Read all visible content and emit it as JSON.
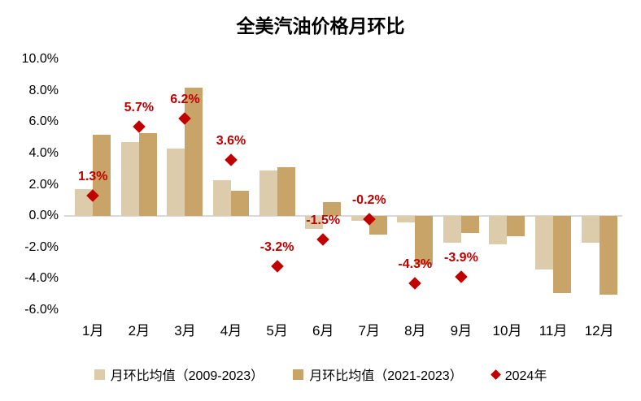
{
  "chart_data": {
    "type": "bar",
    "title": "全美汽油价格月环比",
    "xlabel": "",
    "ylabel": "",
    "ylim": [
      -6,
      10
    ],
    "grid": false,
    "legend_position": "bottom",
    "y_ticks": [
      "10.0%",
      "8.0%",
      "6.0%",
      "4.0%",
      "2.0%",
      "0.0%",
      "-2.0%",
      "-4.0%",
      "-6.0%"
    ],
    "categories": [
      "1月",
      "2月",
      "3月",
      "4月",
      "5月",
      "6月",
      "7月",
      "8月",
      "9月",
      "10月",
      "11月",
      "12月"
    ],
    "series": [
      {
        "name": "月环比均值（2009-2023）",
        "type": "bar",
        "color": "#ddccac",
        "values": [
          1.7,
          4.7,
          4.3,
          2.3,
          2.9,
          -0.8,
          -0.3,
          -0.4,
          -1.7,
          -1.8,
          -3.4,
          -1.7
        ]
      },
      {
        "name": "月环比均值（2021-2023）",
        "type": "bar",
        "color": "#c9a469",
        "values": [
          5.2,
          5.3,
          8.2,
          1.6,
          3.1,
          0.9,
          -1.2,
          -3.1,
          -1.1,
          -1.3,
          -4.9,
          -5.0
        ]
      },
      {
        "name": "2024年",
        "type": "scatter",
        "marker": "diamond",
        "color": "#c00000",
        "values": [
          1.3,
          5.7,
          6.2,
          3.6,
          -3.2,
          -1.5,
          -0.2,
          -4.3,
          -3.9,
          null,
          null,
          null
        ],
        "labels": [
          "1.3%",
          "5.7%",
          "6.2%",
          "3.6%",
          "-3.2%",
          "-1.5%",
          "-0.2%",
          "-4.3%",
          "-3.9%",
          null,
          null,
          null
        ]
      }
    ],
    "colors": {
      "zero_line": "#d9d9d9",
      "point_label": "#c00000",
      "title_text": "#000000"
    }
  }
}
